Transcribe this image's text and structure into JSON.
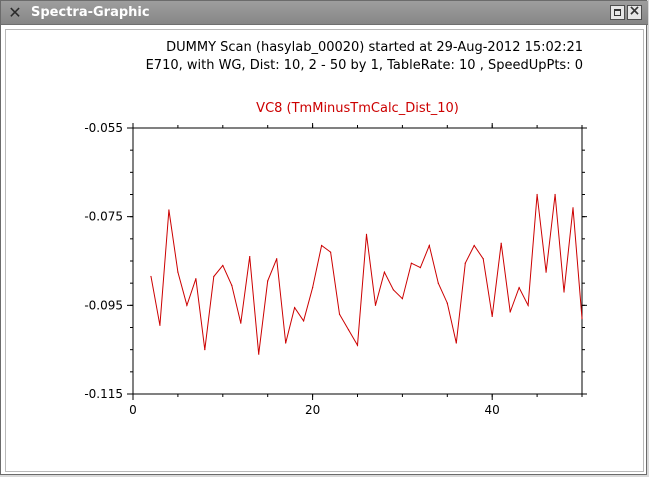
{
  "window": {
    "title": "Spectra-Graphic",
    "icon": "x-logo-icon",
    "buttons": [
      "maximize",
      "close"
    ]
  },
  "header": {
    "line1": "DUMMY  Scan (hasylab_00020) started at 29-Aug-2012 15:02:21",
    "line2": "E710, with WG, Dist: 10, 2 - 50 by 1, TableRate: 10 , SpeedUpPts: 0"
  },
  "chart_data": {
    "type": "line",
    "title": "VC8 (TmMinusTmCalc_Dist_10)",
    "title_color": "#cc0000",
    "line_color": "#cc0000",
    "xlim": [
      0,
      50
    ],
    "ylim": [
      -0.115,
      -0.055
    ],
    "x_ticks": [
      "0",
      "20",
      "40"
    ],
    "y_ticks": [
      "-0.055",
      "-0.075",
      "-0.095",
      "-0.115"
    ],
    "grid": false,
    "x": [
      2,
      3,
      4,
      5,
      6,
      7,
      8,
      9,
      10,
      11,
      12,
      13,
      14,
      15,
      16,
      17,
      18,
      19,
      20,
      21,
      22,
      23,
      24,
      25,
      26,
      27,
      28,
      29,
      30,
      31,
      32,
      33,
      34,
      35,
      36,
      37,
      38,
      39,
      40,
      41,
      42,
      43,
      44,
      45,
      46,
      47,
      48,
      49,
      50
    ],
    "series": [
      {
        "values": [
          -0.0885,
          -0.0995,
          -0.0735,
          -0.0875,
          -0.095,
          -0.089,
          -0.105,
          -0.0885,
          -0.086,
          -0.0905,
          -0.099,
          -0.084,
          -0.106,
          -0.0895,
          -0.0845,
          -0.1035,
          -0.0955,
          -0.0985,
          -0.091,
          -0.0815,
          -0.083,
          -0.097,
          -0.1005,
          -0.104,
          -0.079,
          -0.095,
          -0.0875,
          -0.0915,
          -0.0935,
          -0.0855,
          -0.0865,
          -0.0815,
          -0.09,
          -0.0945,
          -0.1035,
          -0.0855,
          -0.0815,
          -0.0845,
          -0.0975,
          -0.081,
          -0.0965,
          -0.091,
          -0.095,
          -0.07,
          -0.0875,
          -0.07,
          -0.092,
          -0.073,
          -0.098
        ]
      }
    ]
  }
}
